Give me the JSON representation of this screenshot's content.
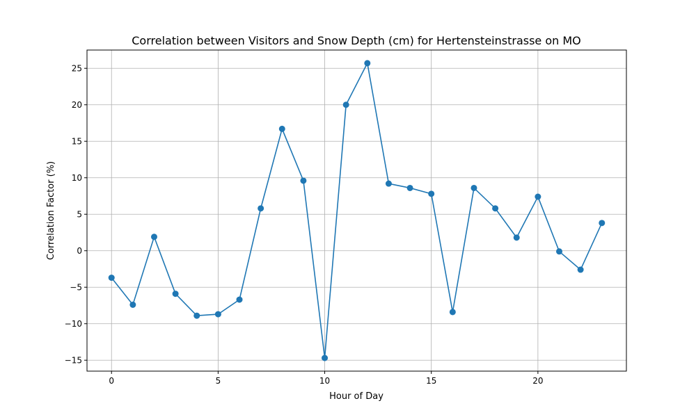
{
  "chart_data": {
    "type": "line",
    "title": "Correlation between Visitors and Snow Depth (cm) for Hertensteinstrasse on MO",
    "xlabel": "Hour of Day",
    "ylabel": "Correlation Factor (%)",
    "xlim": [
      -1.15,
      24.15
    ],
    "ylim": [
      -16.5,
      27.5
    ],
    "xticks": [
      0,
      5,
      10,
      15,
      20
    ],
    "yticks": [
      -15,
      -10,
      -5,
      0,
      5,
      10,
      15,
      20,
      25
    ],
    "xtick_labels": [
      "0",
      "5",
      "10",
      "15",
      "20"
    ],
    "ytick_labels": [
      "−15",
      "−10",
      "−5",
      "0",
      "5",
      "10",
      "15",
      "20",
      "25"
    ],
    "grid": true,
    "series": [
      {
        "color": "#1f77b4",
        "marker": "circle",
        "x": [
          0,
          1,
          2,
          3,
          4,
          5,
          6,
          7,
          8,
          9,
          10,
          11,
          12,
          13,
          14,
          15,
          16,
          17,
          18,
          19,
          20,
          21,
          22,
          23
        ],
        "y": [
          -3.7,
          -7.4,
          1.9,
          -5.9,
          -8.9,
          -8.7,
          -6.7,
          5.8,
          16.7,
          9.6,
          -14.7,
          20.0,
          25.7,
          9.2,
          8.6,
          7.8,
          -8.4,
          8.6,
          5.8,
          1.8,
          7.4,
          -0.1,
          -2.6,
          3.8
        ]
      }
    ]
  }
}
